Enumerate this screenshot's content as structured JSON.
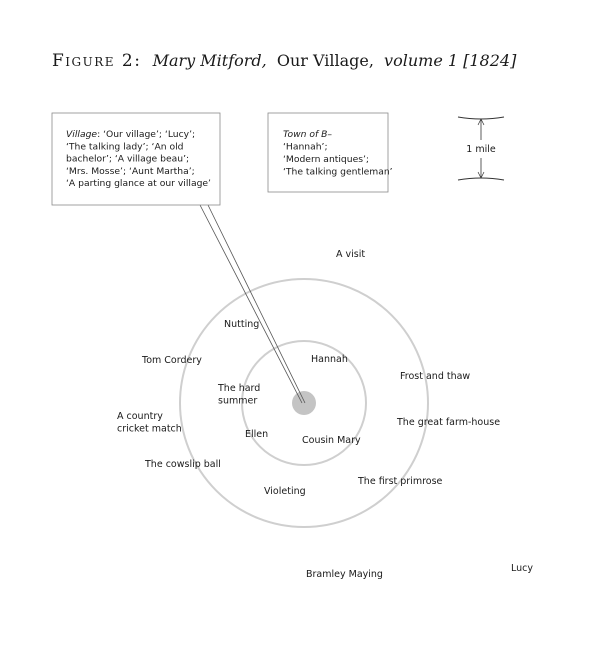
{
  "title": {
    "figure_label": "Figure 2:",
    "author": "Mary Mitford,",
    "work": "Our Village,",
    "volume": "volume 1 [1824]"
  },
  "village_box": {
    "lines": [
      {
        "italic": "Village",
        "plain": ": ‘Our village’; ‘Lucy’;"
      },
      {
        "italic": "",
        "plain": "‘The talking lady’; ‘An old"
      },
      {
        "italic": "",
        "plain": "bachelor’; ‘A village beau’;"
      },
      {
        "italic": "",
        "plain": "‘Mrs. Mosse’; ‘Aunt Martha’;"
      },
      {
        "italic": "",
        "plain": "‘A parting glance at our village’"
      }
    ]
  },
  "town_box": {
    "lines": [
      {
        "italic": "Town of B–",
        "plain": ""
      },
      {
        "italic": "",
        "plain": "‘Hannah’;"
      },
      {
        "italic": "",
        "plain": "‘Modern antiques’;"
      },
      {
        "italic": "",
        "plain": "‘The talking gentleman’"
      }
    ]
  },
  "scale": {
    "label": "1 mile"
  },
  "places": [
    {
      "id": "a-visit",
      "lines": [
        "A visit"
      ]
    },
    {
      "id": "nutting",
      "lines": [
        "Nutting"
      ]
    },
    {
      "id": "tom-cordery",
      "lines": [
        "Tom Cordery"
      ]
    },
    {
      "id": "hannah",
      "lines": [
        "Hannah"
      ]
    },
    {
      "id": "frost-and-thaw",
      "lines": [
        "Frost and thaw"
      ]
    },
    {
      "id": "the-hard-summer",
      "lines": [
        "The hard",
        "summer"
      ]
    },
    {
      "id": "a-country-cricket-match",
      "lines": [
        "A country",
        "cricket match"
      ]
    },
    {
      "id": "the-great-farm-house",
      "lines": [
        "The great farm-house"
      ]
    },
    {
      "id": "ellen",
      "lines": [
        "Ellen"
      ]
    },
    {
      "id": "cousin-mary",
      "lines": [
        "Cousin Mary"
      ]
    },
    {
      "id": "the-cowslip-ball",
      "lines": [
        "The cowslip ball"
      ]
    },
    {
      "id": "the-first-primrose",
      "lines": [
        "The first primrose"
      ]
    },
    {
      "id": "violeting",
      "lines": [
        "Violeting"
      ]
    },
    {
      "id": "bramley-maying",
      "lines": [
        "Bramley Maying"
      ]
    },
    {
      "id": "lucy",
      "lines": [
        "Lucy"
      ]
    }
  ],
  "colors": {
    "circle": "#cfcfcf",
    "center_dot": "#c4c4c4",
    "box_border": "#8a8a8a",
    "text": "#1a1a1a"
  }
}
